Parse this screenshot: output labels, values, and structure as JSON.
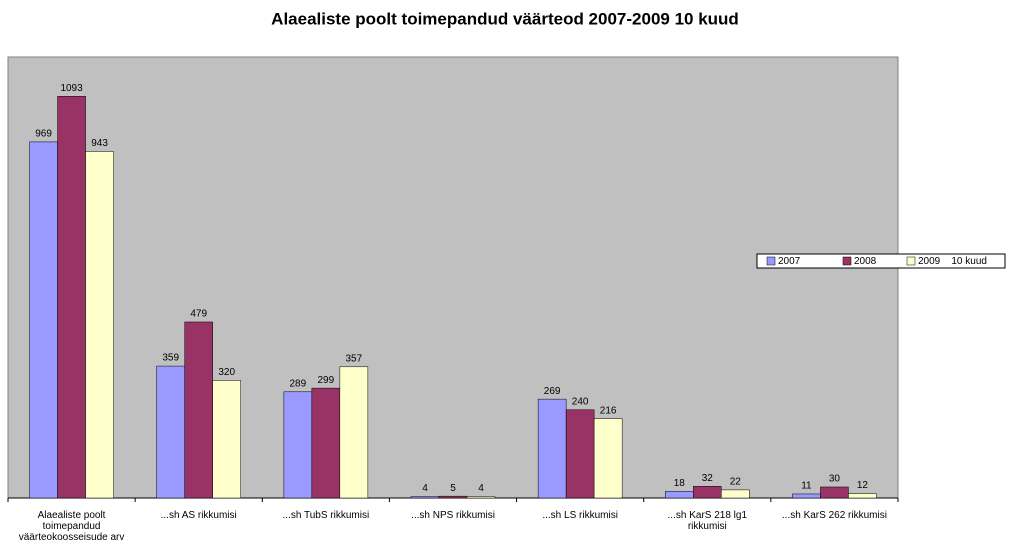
{
  "chart_data": {
    "type": "bar",
    "title": "Alaealiste poolt toimepandud väärteod 2007-2009 10 kuud",
    "categories": [
      "Alaealiste poolt toimepandud väärteokoosseisude arv",
      "...sh AS rikkumisi",
      "...sh TubS rikkumisi",
      "...sh NPS rikkumisi",
      "...sh LS rikkumisi",
      "...sh KarS 218 lg1 rikkumisi",
      "...sh KarS 262 rikkumisi"
    ],
    "series": [
      {
        "name": "2007",
        "color": "#9999ff",
        "values": [
          969,
          359,
          289,
          4,
          269,
          18,
          11
        ]
      },
      {
        "name": "2008",
        "color": "#993366",
        "values": [
          1093,
          479,
          299,
          5,
          240,
          32,
          30
        ]
      },
      {
        "name": "2009    10 kuud",
        "color": "#ffffcc",
        "values": [
          943,
          320,
          357,
          4,
          216,
          22,
          12
        ]
      }
    ],
    "ylim": [
      0,
      1200
    ],
    "legend": "right",
    "background": "#c0c0c0"
  }
}
